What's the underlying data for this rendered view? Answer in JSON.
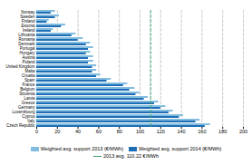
{
  "chart_data": {
    "type": "bar",
    "orientation": "horizontal",
    "categories": [
      "Norway",
      "Sweden",
      "Finland",
      "Estonia",
      "Ireland",
      "Lithuania",
      "Romania",
      "Denmark",
      "Portugal",
      "Hungary",
      "Austria",
      "Poland",
      "United Kingdom",
      "Malta",
      "Croatia",
      "Spain",
      "France",
      "Belgium",
      "Slovenia",
      "Latvia",
      "Greece",
      "Germany",
      "Luxembourg",
      "Cyprus",
      "Italy",
      "Czech Republic"
    ],
    "series": [
      {
        "name": "Weighted avg. support 2013 (€/MWh)",
        "color": "#82bde0",
        "values": [
          18,
          22,
          12,
          28,
          16,
          38,
          45,
          52,
          55,
          52,
          55,
          55,
          58,
          58,
          62,
          72,
          88,
          95,
          100,
          108,
          118,
          125,
          132,
          142,
          158,
          168
        ]
      },
      {
        "name": "Weighted avg. support 2014 (€/MWh)",
        "color": "#1f6eb5",
        "values": [
          14,
          18,
          10,
          24,
          14,
          34,
          40,
          48,
          50,
          48,
          50,
          50,
          54,
          54,
          58,
          68,
          84,
          90,
          96,
          104,
          114,
          120,
          128,
          138,
          154,
          163
        ]
      }
    ],
    "average_line": {
      "value": 110.22,
      "label": "2013 avg. 110.22 €/MWh",
      "color": "#3a9c6e"
    },
    "xlim": [
      0,
      200
    ],
    "xticks": [
      0,
      20,
      40,
      60,
      80,
      100,
      120,
      140,
      160,
      180,
      200
    ],
    "grid": true,
    "legend": "bottom"
  }
}
